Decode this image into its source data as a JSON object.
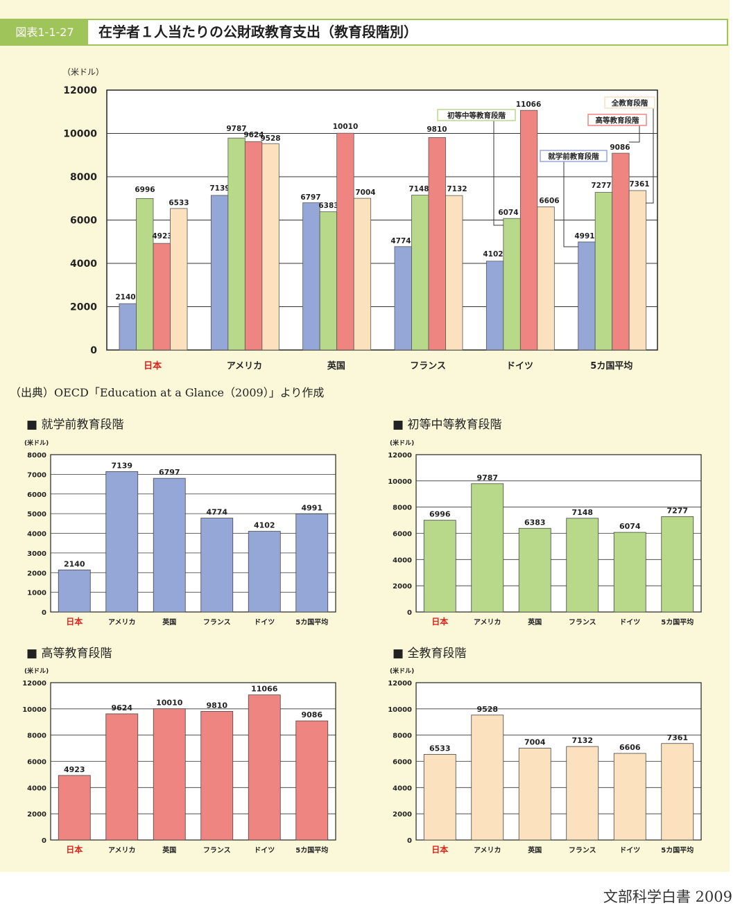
{
  "header": {
    "figure_label": "図表1-1-27",
    "title": "在学者１人当たりの公財政教育支出（教育段階別）"
  },
  "source_note": "（出典）OECD「Education at a Glance（2009）」より作成",
  "footer": "文部科学白書 2009",
  "colors": {
    "preschool": "#94a7d6",
    "primary_secondary": "#b8d98a",
    "higher": "#ee8580",
    "all_levels": "#fbe1bd",
    "japan_label": "#e0211a"
  },
  "chart_data": [
    {
      "type": "bar",
      "ylabel": "（米ドル）",
      "ylim": [
        0,
        12000
      ],
      "yticks": [
        0,
        2000,
        4000,
        6000,
        8000,
        10000,
        12000
      ],
      "categories": [
        "日本",
        "アメリカ",
        "英国",
        "フランス",
        "ドイツ",
        "5カ国平均"
      ],
      "series": [
        {
          "name": "就学前教育段階",
          "values": [
            2140,
            7139,
            6797,
            4774,
            4102,
            4991
          ]
        },
        {
          "name": "初等中等教育段階",
          "values": [
            6996,
            9787,
            6383,
            7148,
            6074,
            7277
          ]
        },
        {
          "name": "高等教育段階",
          "values": [
            4923,
            9624,
            10010,
            9810,
            11066,
            9086
          ]
        },
        {
          "name": "全教育段階",
          "values": [
            6533,
            9528,
            7004,
            7132,
            6606,
            7361
          ]
        }
      ],
      "legend_placement": "callouts on ドイツ and 5カ国平均 bars"
    },
    {
      "type": "bar",
      "title": "■ 就学前教育段階",
      "ylabel": "(米ドル)",
      "ylim": [
        0,
        8000
      ],
      "yticks": [
        0,
        1000,
        2000,
        3000,
        4000,
        5000,
        6000,
        7000,
        8000
      ],
      "categories": [
        "日本",
        "アメリカ",
        "英国",
        "フランス",
        "ドイツ",
        "5カ国平均"
      ],
      "values": [
        2140,
        7139,
        6797,
        4774,
        4102,
        4991
      ]
    },
    {
      "type": "bar",
      "title": "■ 初等中等教育段階",
      "ylabel": "(米ドル)",
      "ylim": [
        0,
        12000
      ],
      "yticks": [
        0,
        2000,
        4000,
        6000,
        8000,
        10000,
        12000
      ],
      "categories": [
        "日本",
        "アメリカ",
        "英国",
        "フランス",
        "ドイツ",
        "5カ国平均"
      ],
      "values": [
        6996,
        9787,
        6383,
        7148,
        6074,
        7277
      ]
    },
    {
      "type": "bar",
      "title": "■ 高等教育段階",
      "ylabel": "(米ドル)",
      "ylim": [
        0,
        12000
      ],
      "yticks": [
        0,
        2000,
        4000,
        6000,
        8000,
        10000,
        12000
      ],
      "categories": [
        "日本",
        "アメリカ",
        "英国",
        "フランス",
        "ドイツ",
        "5カ国平均"
      ],
      "values": [
        4923,
        9624,
        10010,
        9810,
        11066,
        9086
      ]
    },
    {
      "type": "bar",
      "title": "■ 全教育段階",
      "ylabel": "(米ドル)",
      "ylim": [
        0,
        12000
      ],
      "yticks": [
        0,
        2000,
        4000,
        6000,
        8000,
        10000,
        12000
      ],
      "categories": [
        "日本",
        "アメリカ",
        "英国",
        "フランス",
        "ドイツ",
        "5カ国平均"
      ],
      "values": [
        6533,
        9528,
        7004,
        7132,
        6606,
        7361
      ]
    }
  ]
}
